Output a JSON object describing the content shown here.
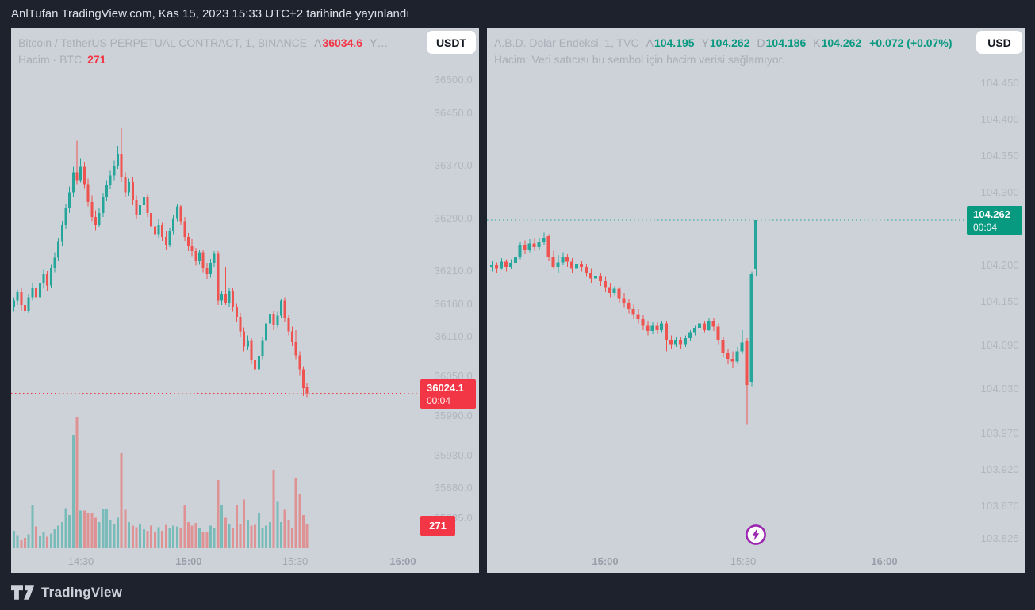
{
  "title_bar": {
    "text": "AnlTufan TradingView.com, Kas 15, 2023 15:33 UTC+2 tarihinde yayınlandı"
  },
  "footer": {
    "brand": "TradingView"
  },
  "colors": {
    "background": "#1e222d",
    "chart_background": "#cdd1d8",
    "up": "#26a69a",
    "down": "#ef5350",
    "up_strong": "#089981",
    "down_strong": "#f23645",
    "up_volume": "rgba(38,166,154,0.5)",
    "down_volume": "rgba(239,83,80,0.5)",
    "flash_purple": "#9c27b0"
  },
  "panels": [
    {
      "header": {
        "title": "Bitcoin / TetherUS PERPETUAL CONTRACT, 1, BINANCE",
        "fields": [
          {
            "k": "A",
            "v": "36034.6",
            "c": "down"
          },
          {
            "k": "Y…",
            "v": "",
            "c": "muted"
          }
        ],
        "line2_label": "Hacim · BTC",
        "line2_value": "271",
        "line2_value_color": "down"
      },
      "currency": "USDT",
      "badge": {
        "price": "36024.1",
        "countdown": "00:04",
        "dir": "down"
      },
      "volume_badge": "271"
    },
    {
      "header": {
        "title": "A.B.D. Dolar Endeksi, 1, TVC",
        "fields": [
          {
            "k": "A",
            "v": "104.195",
            "c": "up"
          },
          {
            "k": "Y",
            "v": "104.262",
            "c": "up"
          },
          {
            "k": "D",
            "v": "104.186",
            "c": "up"
          },
          {
            "k": "K",
            "v": "104.262",
            "c": "up"
          },
          {
            "k": "",
            "v": "+0.072 (+0.07%)",
            "c": "up"
          }
        ],
        "line2_label": "Hacim: Veri satıcısı bu sembol için hacim verisi sağlamıyor.",
        "line2_value": "",
        "line2_value_color": "muted"
      },
      "currency": "USD",
      "badge": {
        "price": "104.262",
        "countdown": "00:04",
        "dir": "up"
      }
    }
  ],
  "chart_data": [
    {
      "type": "candlestick",
      "title": "Bitcoin / TetherUS PERPETUAL CONTRACT",
      "exchange": "BINANCE",
      "interval": "1",
      "quote_unit": "USDT",
      "last_close": 36024.1,
      "last_open": 36034.6,
      "current_volume_btc": 271,
      "countdown": "00:04",
      "legend_position": "top-left",
      "grid": false,
      "y_ticks": [
        "36500.0",
        "36450.0",
        "36370.0",
        "36290.0",
        "36210.0",
        "36160.0",
        "36110.0",
        "36050.0",
        "35990.0",
        "35930.0",
        "35880.0",
        "35835.0"
      ],
      "x_ticks": [
        "14:30",
        "15:00",
        "15:30",
        "16:00"
      ],
      "ylim": [
        35810,
        36580
      ],
      "candles": [
        [
          36155,
          36170,
          36148,
          36165
        ],
        [
          36165,
          36182,
          36158,
          36178
        ],
        [
          36178,
          36184,
          36150,
          36158
        ],
        [
          36158,
          36166,
          36142,
          36150
        ],
        [
          36150,
          36175,
          36146,
          36170
        ],
        [
          36170,
          36192,
          36165,
          36185
        ],
        [
          36185,
          36190,
          36162,
          36170
        ],
        [
          36170,
          36198,
          36166,
          36192
        ],
        [
          36192,
          36212,
          36185,
          36205
        ],
        [
          36205,
          36210,
          36180,
          36188
        ],
        [
          36188,
          36220,
          36184,
          36215
        ],
        [
          36215,
          36238,
          36208,
          36230
        ],
        [
          36230,
          36260,
          36225,
          36255
        ],
        [
          36255,
          36286,
          36248,
          36280
        ],
        [
          36280,
          36312,
          36274,
          36305
        ],
        [
          36305,
          36338,
          36298,
          36330
        ],
        [
          36330,
          36368,
          36322,
          36360
        ],
        [
          36360,
          36408,
          36342,
          36348
        ],
        [
          36348,
          36380,
          36344,
          36368
        ],
        [
          36368,
          36376,
          36336,
          36342
        ],
        [
          36342,
          36350,
          36308,
          36315
        ],
        [
          36315,
          36325,
          36285,
          36292
        ],
        [
          36292,
          36302,
          36272,
          36280
        ],
        [
          36280,
          36306,
          36276,
          36298
        ],
        [
          36298,
          36328,
          36292,
          36322
        ],
        [
          36322,
          36348,
          36316,
          36340
        ],
        [
          36340,
          36362,
          36334,
          36355
        ],
        [
          36355,
          36378,
          36348,
          36370
        ],
        [
          36370,
          36400,
          36365,
          36388
        ],
        [
          36388,
          36428,
          36345,
          36352
        ],
        [
          36352,
          36360,
          36322,
          36330
        ],
        [
          36330,
          36350,
          36324,
          36345
        ],
        [
          36345,
          36352,
          36310,
          36318
        ],
        [
          36318,
          36325,
          36288,
          36295
        ],
        [
          36295,
          36315,
          36290,
          36310
        ],
        [
          36310,
          36328,
          36304,
          36322
        ],
        [
          36322,
          36326,
          36292,
          36298
        ],
        [
          36298,
          36306,
          36270,
          36278
        ],
        [
          36278,
          36285,
          36258,
          36265
        ],
        [
          36265,
          36288,
          36260,
          36280
        ],
        [
          36280,
          36284,
          36256,
          36262
        ],
        [
          36262,
          36270,
          36242,
          36250
        ],
        [
          36250,
          36275,
          36246,
          36270
        ],
        [
          36270,
          36295,
          36265,
          36290
        ],
        [
          36290,
          36312,
          36285,
          36308
        ],
        [
          36308,
          36310,
          36280,
          36285
        ],
        [
          36285,
          36292,
          36256,
          36262
        ],
        [
          36262,
          36268,
          36240,
          36248
        ],
        [
          36248,
          36258,
          36232,
          36240
        ],
        [
          36240,
          36245,
          36218,
          36225
        ],
        [
          36225,
          36242,
          36220,
          36238
        ],
        [
          36238,
          36242,
          36208,
          36215
        ],
        [
          36215,
          36222,
          36198,
          36205
        ],
        [
          36205,
          36228,
          36200,
          36222
        ],
        [
          36222,
          36240,
          36216,
          36237
        ],
        [
          36237,
          36240,
          36158,
          36165
        ],
        [
          36165,
          36180,
          36158,
          36175
        ],
        [
          36175,
          36216,
          36158,
          36162
        ],
        [
          36162,
          36185,
          36155,
          36180
        ],
        [
          36180,
          36184,
          36148,
          36156
        ],
        [
          36156,
          36160,
          36132,
          36140
        ],
        [
          36140,
          36146,
          36110,
          36118
        ],
        [
          36118,
          36124,
          36088,
          36095
        ],
        [
          36095,
          36112,
          36090,
          36105
        ],
        [
          36105,
          36108,
          36068,
          36075
        ],
        [
          36075,
          36082,
          36052,
          36060
        ],
        [
          36060,
          36085,
          36056,
          36080
        ],
        [
          36080,
          36110,
          36076,
          36105
        ],
        [
          36105,
          36135,
          36100,
          36130
        ],
        [
          36130,
          36150,
          36122,
          36145
        ],
        [
          36145,
          36150,
          36120,
          36128
        ],
        [
          36128,
          36148,
          36124,
          36142
        ],
        [
          36142,
          36168,
          36138,
          36165
        ],
        [
          36165,
          36170,
          36132,
          36138
        ],
        [
          36138,
          36144,
          36112,
          36118
        ],
        [
          36118,
          36125,
          36096,
          36102
        ],
        [
          36102,
          36120,
          36076,
          36082
        ],
        [
          36082,
          36088,
          36052,
          36060
        ],
        [
          36060,
          36065,
          36020,
          36032
        ],
        [
          36034.6,
          36040,
          36018,
          36024.1
        ]
      ],
      "volumes": [
        200,
        150,
        90,
        120,
        160,
        500,
        250,
        140,
        180,
        130,
        170,
        220,
        260,
        300,
        460,
        380,
        1300,
        1500,
        430,
        430,
        400,
        400,
        350,
        300,
        450,
        450,
        320,
        280,
        350,
        1090,
        440,
        300,
        260,
        240,
        280,
        220,
        200,
        260,
        180,
        240,
        200,
        270,
        230,
        260,
        250,
        230,
        500,
        300,
        260,
        290,
        230,
        180,
        180,
        260,
        230,
        780,
        500,
        350,
        280,
        230,
        500,
        280,
        560,
        320,
        260,
        270,
        410,
        230,
        260,
        300,
        900,
        530,
        300,
        440,
        320,
        230,
        800,
        620,
        380,
        271
      ]
    },
    {
      "type": "candlestick",
      "title": "A.B.D. Dolar Endeksi",
      "exchange": "TVC",
      "interval": "1",
      "quote_unit": "USD",
      "last_close": 104.262,
      "current_bar": {
        "open": 104.195,
        "high": 104.262,
        "low": 104.186,
        "close": 104.262
      },
      "change": "+0.072",
      "change_pct": "+0.07%",
      "countdown": "00:04",
      "volume_available": false,
      "legend_position": "top-left",
      "grid": false,
      "y_ticks": [
        "104.450",
        "104.400",
        "104.350",
        "104.300",
        "104.200",
        "104.150",
        "104.090",
        "104.030",
        "103.970",
        "103.920",
        "103.870",
        "103.825"
      ],
      "x_ticks": [
        "15:00",
        "15:30",
        "16:00"
      ],
      "ylim": [
        103.79,
        104.49
      ],
      "candles": [
        [
          104.198,
          104.206,
          104.192,
          104.2
        ],
        [
          104.2,
          104.204,
          104.19,
          104.196
        ],
        [
          104.196,
          104.21,
          104.194,
          104.205
        ],
        [
          104.205,
          104.208,
          104.192,
          104.198
        ],
        [
          104.198,
          104.208,
          104.195,
          104.203
        ],
        [
          104.203,
          104.216,
          104.2,
          104.212
        ],
        [
          104.212,
          104.232,
          104.208,
          104.228
        ],
        [
          104.228,
          104.234,
          104.216,
          104.222
        ],
        [
          104.222,
          104.236,
          104.218,
          104.23
        ],
        [
          104.23,
          104.238,
          104.22,
          104.225
        ],
        [
          104.225,
          104.237,
          104.221,
          104.232
        ],
        [
          104.232,
          104.245,
          104.228,
          104.238
        ],
        [
          104.24,
          104.242,
          104.206,
          104.212
        ],
        [
          104.212,
          104.22,
          104.196,
          104.198
        ],
        [
          104.198,
          104.214,
          104.19,
          104.204
        ],
        [
          104.204,
          104.218,
          104.2,
          104.212
        ],
        [
          104.212,
          104.216,
          104.198,
          104.205
        ],
        [
          104.205,
          104.21,
          104.19,
          104.196
        ],
        [
          104.196,
          104.208,
          104.192,
          104.202
        ],
        [
          104.202,
          104.206,
          104.192,
          104.198
        ],
        [
          104.198,
          104.202,
          104.184,
          104.19
        ],
        [
          104.19,
          104.196,
          104.176,
          104.182
        ],
        [
          104.182,
          104.192,
          104.178,
          104.186
        ],
        [
          104.186,
          104.19,
          104.172,
          104.178
        ],
        [
          104.178,
          104.184,
          104.164,
          104.17
        ],
        [
          104.17,
          104.176,
          104.156,
          104.162
        ],
        [
          104.162,
          104.172,
          104.158,
          104.168
        ],
        [
          104.168,
          104.17,
          104.148,
          104.155
        ],
        [
          104.155,
          104.162,
          104.142,
          104.148
        ],
        [
          104.148,
          104.154,
          104.134,
          104.14
        ],
        [
          104.14,
          104.146,
          104.126,
          104.133
        ],
        [
          104.133,
          104.14,
          104.12,
          104.126
        ],
        [
          104.126,
          104.132,
          104.112,
          104.118
        ],
        [
          104.118,
          104.124,
          104.104,
          104.11
        ],
        [
          104.11,
          104.122,
          104.106,
          104.118
        ],
        [
          104.118,
          104.122,
          104.106,
          104.112
        ],
        [
          104.112,
          104.124,
          104.108,
          104.12
        ],
        [
          104.12,
          104.124,
          104.082,
          104.098
        ],
        [
          104.098,
          104.104,
          104.086,
          104.092
        ],
        [
          104.092,
          104.102,
          104.088,
          104.098
        ],
        [
          104.098,
          104.102,
          104.086,
          104.092
        ],
        [
          104.092,
          104.104,
          104.088,
          104.1
        ],
        [
          104.1,
          104.112,
          104.096,
          104.108
        ],
        [
          104.108,
          104.118,
          104.104,
          104.114
        ],
        [
          104.114,
          104.124,
          104.11,
          104.12
        ],
        [
          104.12,
          104.124,
          104.108,
          104.112
        ],
        [
          104.112,
          104.128,
          104.11,
          104.124
        ],
        [
          104.124,
          104.128,
          104.11,
          104.116
        ],
        [
          104.116,
          104.12,
          104.092,
          104.098
        ],
        [
          104.098,
          104.102,
          104.074,
          104.08
        ],
        [
          104.08,
          104.086,
          104.064,
          104.072
        ],
        [
          104.072,
          104.082,
          104.06,
          104.068
        ],
        [
          104.068,
          104.088,
          104.064,
          104.082
        ],
        [
          104.082,
          104.112,
          104.078,
          104.094
        ],
        [
          104.096,
          104.1,
          103.982,
          104.036
        ],
        [
          104.04,
          104.192,
          104.034,
          104.188
        ],
        [
          104.195,
          104.262,
          104.186,
          104.262
        ]
      ]
    }
  ]
}
